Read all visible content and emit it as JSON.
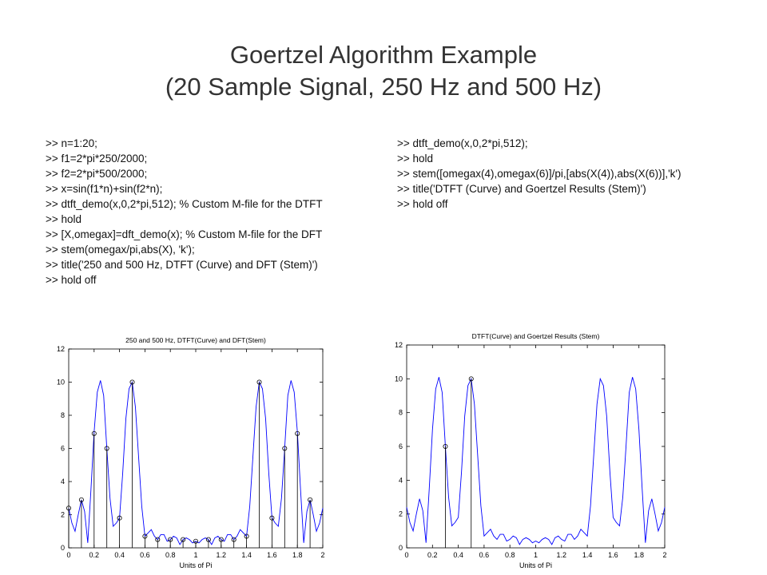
{
  "title": [
    "Goertzel Algorithm Example",
    "(20 Sample Signal, 250 Hz and 500 Hz)"
  ],
  "code_left": [
    ">> n=1:20;",
    ">> f1=2*pi*250/2000;",
    ">> f2=2*pi*500/2000;",
    ">> x=sin(f1*n)+sin(f2*n);",
    ">> dtft_demo(x,0,2*pi,512); % Custom M-file for the DTFT",
    ">> hold",
    ">> [X,omegax]=dft_demo(x); % Custom M-file for the DFT",
    ">> stem(omegax/pi,abs(X), 'k');",
    ">> title('250 and 500 Hz, DTFT (Curve) and DFT (Stem)')",
    ">> hold off"
  ],
  "code_right": [
    ">> dtft_demo(x,0,2*pi,512);",
    ">> hold",
    ">> stem([omegax(4),omegax(6)]/pi,[abs(X(4)),abs(X(6))],'k')",
    ">> title('DTFT (Curve) and Goertzel Results (Stem)')",
    ">> hold off"
  ],
  "chart_data": [
    {
      "type": "line",
      "title": "250 and 500 Hz, DTFT(Curve) and DFT(Stem)",
      "x_label": "Units of Pi",
      "xlim": [
        0,
        2
      ],
      "ylim": [
        0,
        12
      ],
      "xticks": [
        0,
        0.2,
        0.4,
        0.6,
        0.8,
        1,
        1.2,
        1.4,
        1.6,
        1.8,
        2
      ],
      "yticks": [
        0,
        2,
        4,
        6,
        8,
        10,
        12
      ],
      "series": [
        {
          "name": "DTFT",
          "color": "#0000ff",
          "x": [
            0,
            0.025,
            0.05,
            0.075,
            0.1,
            0.125,
            0.15,
            0.175,
            0.2,
            0.225,
            0.25,
            0.275,
            0.3,
            0.325,
            0.35,
            0.375,
            0.4,
            0.425,
            0.45,
            0.475,
            0.5,
            0.525,
            0.55,
            0.575,
            0.6,
            0.625,
            0.65,
            0.675,
            0.7,
            0.725,
            0.75,
            0.775,
            0.8,
            0.825,
            0.85,
            0.875,
            0.9,
            0.925,
            0.95,
            0.975,
            1,
            1.025,
            1.05,
            1.075,
            1.1,
            1.125,
            1.15,
            1.175,
            1.2,
            1.225,
            1.25,
            1.275,
            1.3,
            1.325,
            1.35,
            1.375,
            1.4,
            1.425,
            1.45,
            1.475,
            1.5,
            1.525,
            1.55,
            1.575,
            1.6,
            1.625,
            1.65,
            1.675,
            1.7,
            1.725,
            1.75,
            1.775,
            1.8,
            1.825,
            1.85,
            1.875,
            1.9,
            1.925,
            1.95,
            1.975,
            2
          ],
          "values": [
            2.4,
            1.5,
            1.0,
            2.0,
            2.9,
            2.2,
            0.3,
            3.5,
            7.0,
            9.4,
            10.1,
            9.2,
            6.0,
            3.0,
            1.3,
            1.5,
            1.8,
            4.5,
            7.8,
            9.6,
            10.0,
            8.5,
            5.5,
            2.5,
            0.7,
            0.9,
            1.1,
            0.7,
            0.5,
            0.8,
            0.8,
            0.4,
            0.5,
            0.7,
            0.6,
            0.2,
            0.5,
            0.6,
            0.5,
            0.3,
            0.4,
            0.3,
            0.5,
            0.6,
            0.5,
            0.2,
            0.6,
            0.7,
            0.5,
            0.4,
            0.8,
            0.8,
            0.5,
            0.7,
            1.1,
            0.9,
            0.7,
            2.5,
            5.5,
            8.5,
            10.0,
            9.6,
            7.8,
            4.5,
            1.8,
            1.5,
            1.3,
            3.0,
            6.0,
            9.2,
            10.1,
            9.4,
            7.0,
            3.5,
            0.3,
            2.2,
            2.9,
            2.0,
            1.0,
            1.5,
            2.4
          ]
        },
        {
          "name": "DFT",
          "type": "stem",
          "color": "#000000",
          "x": [
            0,
            0.1,
            0.2,
            0.3,
            0.4,
            0.5,
            0.6,
            0.7,
            0.8,
            0.9,
            1,
            1.1,
            1.2,
            1.3,
            1.4,
            1.5,
            1.6,
            1.7,
            1.8,
            1.9
          ],
          "values": [
            2.4,
            2.9,
            6.9,
            6.0,
            1.8,
            10.0,
            0.7,
            0.5,
            0.5,
            0.5,
            0.4,
            0.5,
            0.5,
            0.5,
            0.7,
            10.0,
            1.8,
            6.0,
            6.9,
            2.9
          ]
        }
      ]
    },
    {
      "type": "line",
      "title": "DTFT(Curve) and Goertzel Results (Stem)",
      "x_label": "Units of Pi",
      "xlim": [
        0,
        2
      ],
      "ylim": [
        0,
        12
      ],
      "xticks": [
        0,
        0.2,
        0.4,
        0.6,
        0.8,
        1,
        1.2,
        1.4,
        1.6,
        1.8,
        2
      ],
      "yticks": [
        0,
        2,
        4,
        6,
        8,
        10,
        12
      ],
      "series": [
        {
          "name": "DTFT",
          "color": "#0000ff",
          "x": [
            0,
            0.025,
            0.05,
            0.075,
            0.1,
            0.125,
            0.15,
            0.175,
            0.2,
            0.225,
            0.25,
            0.275,
            0.3,
            0.325,
            0.35,
            0.375,
            0.4,
            0.425,
            0.45,
            0.475,
            0.5,
            0.525,
            0.55,
            0.575,
            0.6,
            0.625,
            0.65,
            0.675,
            0.7,
            0.725,
            0.75,
            0.775,
            0.8,
            0.825,
            0.85,
            0.875,
            0.9,
            0.925,
            0.95,
            0.975,
            1,
            1.025,
            1.05,
            1.075,
            1.1,
            1.125,
            1.15,
            1.175,
            1.2,
            1.225,
            1.25,
            1.275,
            1.3,
            1.325,
            1.35,
            1.375,
            1.4,
            1.425,
            1.45,
            1.475,
            1.5,
            1.525,
            1.55,
            1.575,
            1.6,
            1.625,
            1.65,
            1.675,
            1.7,
            1.725,
            1.75,
            1.775,
            1.8,
            1.825,
            1.85,
            1.875,
            1.9,
            1.925,
            1.95,
            1.975,
            2
          ],
          "values": [
            2.4,
            1.5,
            1.0,
            2.0,
            2.9,
            2.2,
            0.3,
            3.5,
            7.0,
            9.4,
            10.1,
            9.2,
            6.0,
            3.0,
            1.3,
            1.5,
            1.8,
            4.5,
            7.8,
            9.6,
            10.0,
            8.5,
            5.5,
            2.5,
            0.7,
            0.9,
            1.1,
            0.7,
            0.5,
            0.8,
            0.8,
            0.4,
            0.5,
            0.7,
            0.6,
            0.2,
            0.5,
            0.6,
            0.5,
            0.3,
            0.4,
            0.3,
            0.5,
            0.6,
            0.5,
            0.2,
            0.6,
            0.7,
            0.5,
            0.4,
            0.8,
            0.8,
            0.5,
            0.7,
            1.1,
            0.9,
            0.7,
            2.5,
            5.5,
            8.5,
            10.0,
            9.6,
            7.8,
            4.5,
            1.8,
            1.5,
            1.3,
            3.0,
            6.0,
            9.2,
            10.1,
            9.4,
            7.0,
            3.5,
            0.3,
            2.2,
            2.9,
            2.0,
            1.0,
            1.5,
            2.4
          ]
        },
        {
          "name": "Goertzel",
          "type": "stem",
          "color": "#000000",
          "x": [
            0.3,
            0.5
          ],
          "values": [
            6.0,
            10.0
          ]
        }
      ]
    }
  ]
}
